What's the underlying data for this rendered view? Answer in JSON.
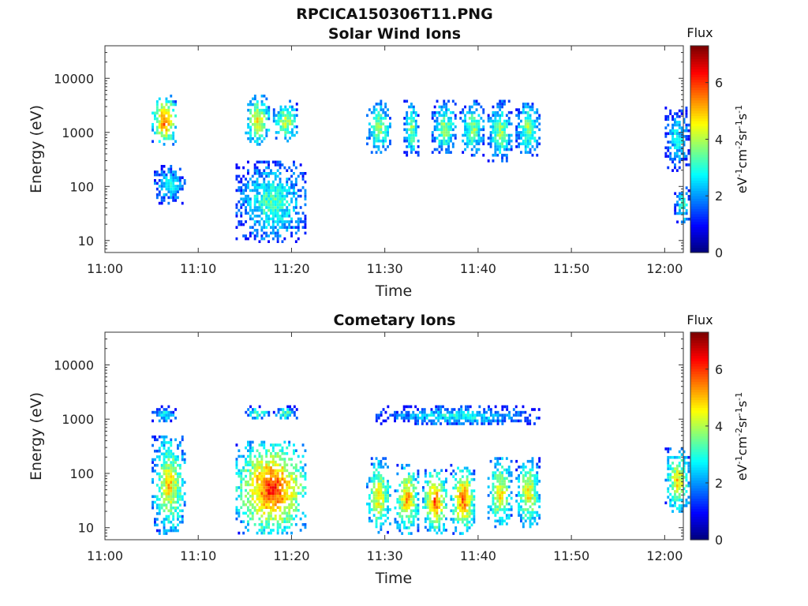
{
  "figure": {
    "title": "RPCICA150306T11.PNG"
  },
  "chart_data": [
    {
      "type": "heatmap",
      "title": "Solar Wind Ions",
      "xlabel": "Time",
      "ylabel": "Energy (eV)",
      "yscale": "log",
      "xlim": [
        "11:00",
        "12:02"
      ],
      "ylim": [
        6,
        40000
      ],
      "xticks": [
        "11:00",
        "11:10",
        "11:20",
        "11:30",
        "11:40",
        "11:50",
        "12:00"
      ],
      "yticks": [
        "10",
        "100",
        "1000",
        "10000"
      ],
      "colorbar": {
        "label": "Flux",
        "unit": "eV-1cm-2sr-1s-1",
        "range": [
          0,
          7.3
        ],
        "ticks": [
          "0",
          "2",
          "4",
          "6"
        ],
        "colormap": "jet"
      },
      "clusters": [
        {
          "time_range": [
            "11:05",
            "11:07"
          ],
          "energy_range": [
            600,
            5000
          ],
          "peak_flux": 6.0
        },
        {
          "time_range": [
            "11:05",
            "11:08"
          ],
          "energy_range": [
            50,
            250
          ],
          "peak_flux": 3.0
        },
        {
          "time_range": [
            "11:15",
            "11:17"
          ],
          "energy_range": [
            600,
            5000
          ],
          "peak_flux": 5.0
        },
        {
          "time_range": [
            "11:18",
            "11:20"
          ],
          "energy_range": [
            700,
            4000
          ],
          "peak_flux": 4.5
        },
        {
          "time_range": [
            "11:14",
            "11:21"
          ],
          "energy_range": [
            10,
            300
          ],
          "peak_flux": 3.5
        },
        {
          "time_range": [
            "11:28",
            "11:30"
          ],
          "energy_range": [
            400,
            4000
          ],
          "peak_flux": 4.0
        },
        {
          "time_range": [
            "11:32",
            "11:33"
          ],
          "energy_range": [
            400,
            4000
          ],
          "peak_flux": 4.0
        },
        {
          "time_range": [
            "11:35",
            "11:37"
          ],
          "energy_range": [
            400,
            4000
          ],
          "peak_flux": 4.0
        },
        {
          "time_range": [
            "11:38",
            "11:40"
          ],
          "energy_range": [
            400,
            4000
          ],
          "peak_flux": 4.0
        },
        {
          "time_range": [
            "11:41",
            "11:43"
          ],
          "energy_range": [
            300,
            4000
          ],
          "peak_flux": 4.0
        },
        {
          "time_range": [
            "11:44",
            "11:46"
          ],
          "energy_range": [
            400,
            4000
          ],
          "peak_flux": 4.0
        },
        {
          "time_range": [
            "12:00",
            "12:02"
          ],
          "energy_range": [
            200,
            3000
          ],
          "peak_flux": 3.0
        },
        {
          "time_range": [
            "12:01",
            "12:02"
          ],
          "energy_range": [
            20,
            100
          ],
          "peak_flux": 3.5
        }
      ]
    },
    {
      "type": "heatmap",
      "title": "Cometary Ions",
      "xlabel": "Time",
      "ylabel": "Energy (eV)",
      "yscale": "log",
      "xlim": [
        "11:00",
        "12:02"
      ],
      "ylim": [
        6,
        40000
      ],
      "xticks": [
        "11:00",
        "11:10",
        "11:20",
        "11:30",
        "11:40",
        "11:50",
        "12:00"
      ],
      "yticks": [
        "10",
        "100",
        "1000",
        "10000"
      ],
      "colorbar": {
        "label": "Flux",
        "unit": "eV-1cm-2sr-1s-1",
        "range": [
          0,
          7.3
        ],
        "ticks": [
          "0",
          "2",
          "4",
          "6"
        ],
        "colormap": "jet"
      },
      "clusters": [
        {
          "time_range": [
            "11:05",
            "11:07"
          ],
          "energy_range": [
            900,
            1800
          ],
          "peak_flux": 3.0
        },
        {
          "time_range": [
            "11:05",
            "11:08"
          ],
          "energy_range": [
            8,
            500
          ],
          "peak_flux": 5.0
        },
        {
          "time_range": [
            "11:15",
            "11:17"
          ],
          "energy_range": [
            1000,
            1800
          ],
          "peak_flux": 3.5
        },
        {
          "time_range": [
            "11:18",
            "11:20"
          ],
          "energy_range": [
            1000,
            1800
          ],
          "peak_flux": 3.5
        },
        {
          "time_range": [
            "11:14",
            "11:21"
          ],
          "energy_range": [
            8,
            400
          ],
          "peak_flux": 6.5
        },
        {
          "time_range": [
            "11:28",
            "11:30"
          ],
          "energy_range": [
            8,
            200
          ],
          "peak_flux": 5.0
        },
        {
          "time_range": [
            "11:31",
            "11:33"
          ],
          "energy_range": [
            8,
            150
          ],
          "peak_flux": 5.5
        },
        {
          "time_range": [
            "11:34",
            "11:36"
          ],
          "energy_range": [
            8,
            120
          ],
          "peak_flux": 6.0
        },
        {
          "time_range": [
            "11:37",
            "11:39"
          ],
          "energy_range": [
            8,
            150
          ],
          "peak_flux": 6.0
        },
        {
          "time_range": [
            "11:41",
            "11:43"
          ],
          "energy_range": [
            10,
            200
          ],
          "peak_flux": 5.0
        },
        {
          "time_range": [
            "11:44",
            "11:46"
          ],
          "energy_range": [
            10,
            200
          ],
          "peak_flux": 5.0
        },
        {
          "time_range": [
            "11:29",
            "11:46"
          ],
          "energy_range": [
            800,
            1800
          ],
          "peak_flux": 3.0
        },
        {
          "time_range": [
            "12:00",
            "12:02"
          ],
          "energy_range": [
            20,
            300
          ],
          "peak_flux": 5.0
        }
      ]
    }
  ]
}
